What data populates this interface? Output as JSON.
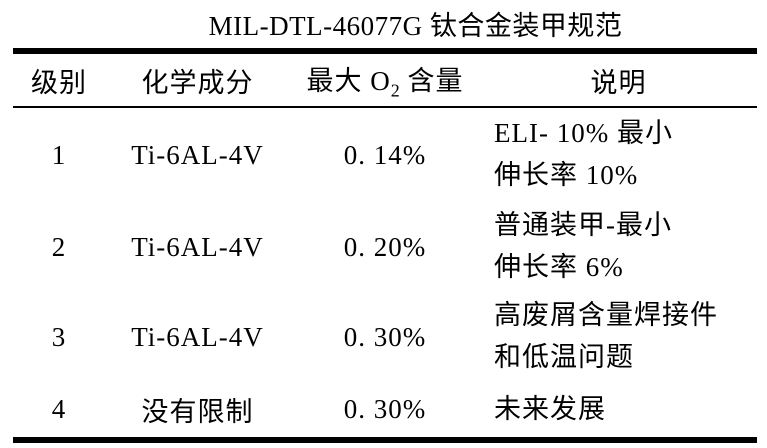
{
  "title": "MIL-DTL-46077G 钛合金装甲规范",
  "colors": {
    "background": "#ffffff",
    "text": "#000000",
    "rule": "#000000"
  },
  "table": {
    "headers": {
      "grade": "级别",
      "composition": "化学成分",
      "max_o2_prefix": "最大 O",
      "max_o2_sub": "2",
      "max_o2_suffix": " 含量",
      "description": "说明"
    },
    "rows": [
      {
        "grade": "1",
        "composition": "Ti-6AL-4V",
        "max_o2": "0. 14%",
        "desc_line1": "ELI- 10%  最小",
        "desc_line2": "伸长率 10%"
      },
      {
        "grade": "2",
        "composition": "Ti-6AL-4V",
        "max_o2": "0. 20%",
        "desc_line1": "普通装甲-最小",
        "desc_line2": "伸长率 6%"
      },
      {
        "grade": "3",
        "composition": "Ti-6AL-4V",
        "max_o2": "0. 30%",
        "desc_line1": "高废屑含量焊接件",
        "desc_line2": "和低温问题"
      },
      {
        "grade": "4",
        "composition": "没有限制",
        "max_o2": "0. 30%",
        "desc_line1": "未来发展",
        "desc_line2": ""
      }
    ]
  }
}
